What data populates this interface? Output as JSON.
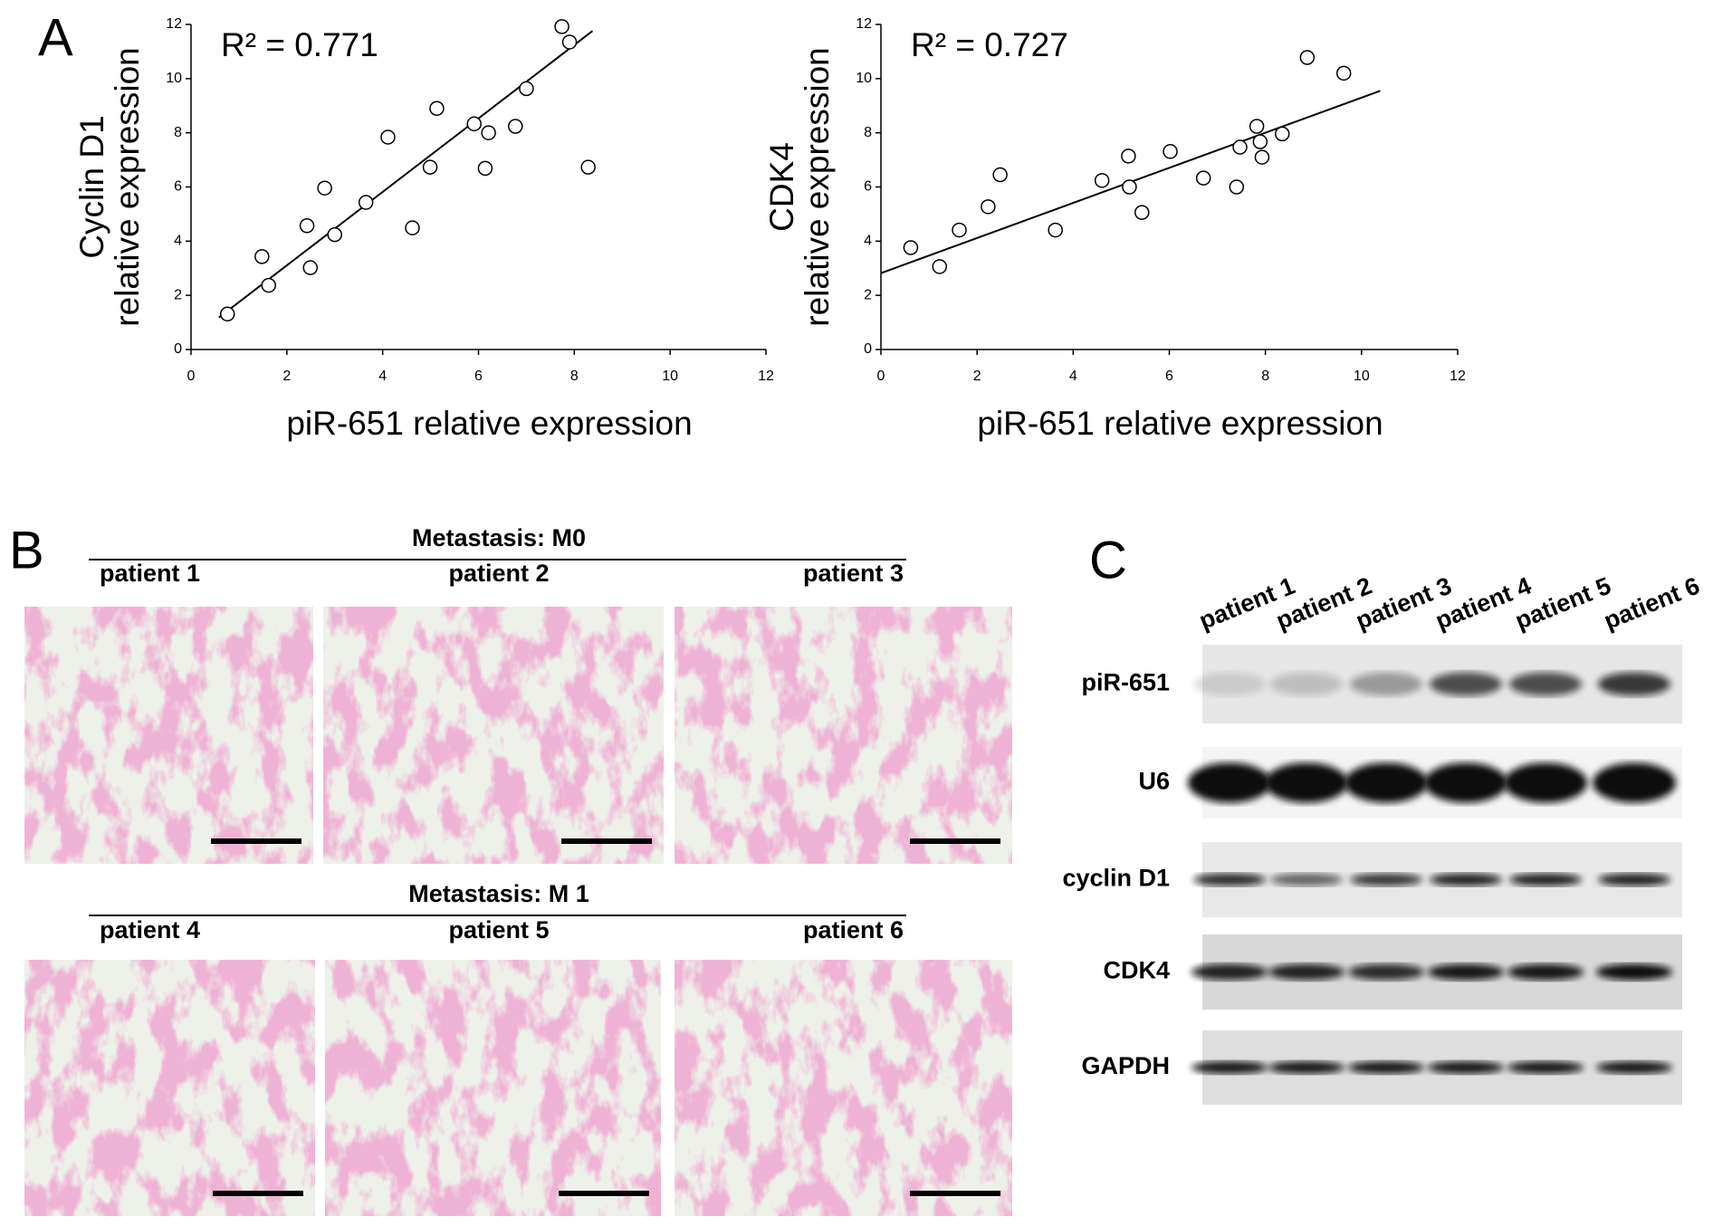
{
  "panel_labels": [
    "A",
    "B",
    "C"
  ],
  "chart_data": [
    {
      "type": "scatter",
      "annotation": "R² = 0.771",
      "ylabel": [
        "Cyclin D1",
        "relative expression"
      ],
      "xlabel": "piR-651 relative expression",
      "color": "#000000",
      "x": [
        0.76,
        1.48,
        1.62,
        2.42,
        2.49,
        2.79,
        3.0,
        3.65,
        4.11,
        4.62,
        4.99,
        5.13,
        5.91,
        6.14,
        6.21,
        6.77,
        7.0,
        7.74,
        7.9,
        8.29
      ],
      "values": [
        1.31,
        3.43,
        2.37,
        4.57,
        3.02,
        5.96,
        4.24,
        5.43,
        7.84,
        4.49,
        6.73,
        8.9,
        8.33,
        6.69,
        8.0,
        8.24,
        9.63,
        11.92,
        11.35,
        6.73
      ],
      "trendline": {
        "x": [
          0.58,
          8.38
        ],
        "values": [
          1.18,
          11.76
        ]
      },
      "xlim": [
        0,
        12
      ],
      "ylim": [
        0,
        12
      ],
      "xticks": [
        0,
        2,
        4,
        6,
        8,
        10,
        12
      ],
      "yticks": [
        0,
        2,
        4,
        6,
        8,
        10,
        12
      ]
    },
    {
      "type": "scatter",
      "annotation": "R² = 0.727",
      "ylabel": [
        "CDK4",
        "relative expression"
      ],
      "xlabel": "piR-651 relative expression",
      "color": "#000000",
      "x": [
        0.62,
        1.22,
        1.63,
        2.23,
        2.48,
        3.63,
        4.6,
        5.15,
        5.17,
        5.43,
        6.02,
        6.71,
        7.4,
        7.47,
        7.82,
        7.89,
        7.93,
        8.35,
        8.87,
        9.63
      ],
      "values": [
        3.76,
        3.06,
        4.41,
        5.27,
        6.45,
        4.41,
        6.24,
        7.14,
        6.0,
        5.06,
        7.31,
        6.33,
        6.0,
        7.47,
        8.24,
        7.67,
        7.1,
        7.96,
        10.78,
        10.2
      ],
      "trendline": {
        "x": [
          0,
          10.39
        ],
        "values": [
          2.82,
          9.55
        ]
      },
      "xlim": [
        0,
        12
      ],
      "ylim": [
        0,
        12
      ],
      "xticks": [
        0,
        2,
        4,
        6,
        8,
        10,
        12
      ],
      "yticks": [
        0,
        2,
        4,
        6,
        8,
        10,
        12
      ]
    }
  ],
  "histology": {
    "groups": [
      {
        "title": "Metastasis: M0",
        "patients": [
          "patient 1",
          "patient 2",
          "patient 3"
        ]
      },
      {
        "title": "Metastasis: M 1",
        "patients": [
          "patient 4",
          "patient 5",
          "patient 6"
        ]
      }
    ]
  },
  "western_blot": {
    "lanes": [
      "patient 1",
      "patient 2",
      "patient 3",
      "patient 4",
      "patient 5",
      "patient 6"
    ],
    "rows": [
      "piR-651",
      "U6",
      "cyclin D1",
      "CDK4",
      "GAPDH"
    ]
  }
}
